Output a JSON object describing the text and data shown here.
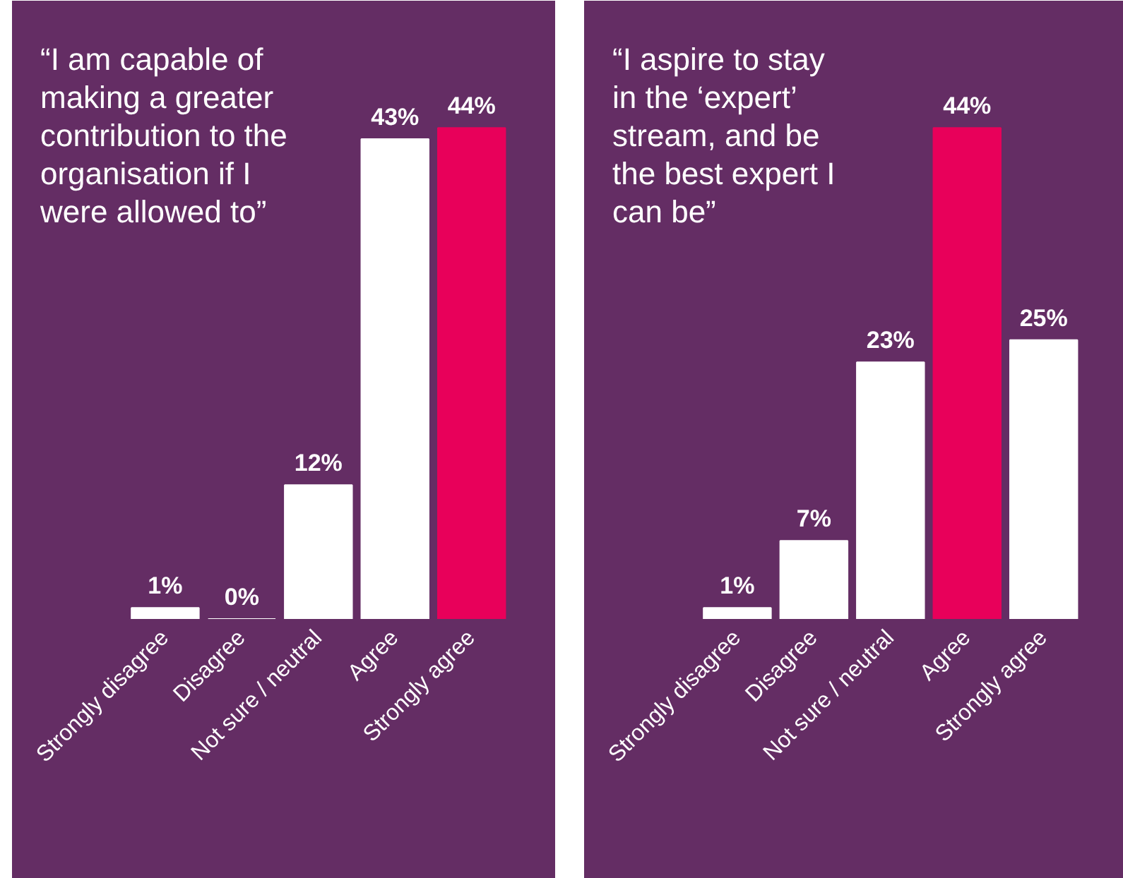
{
  "chart_data": [
    {
      "type": "bar",
      "title": "“I am capable of\nmaking a greater\ncontribution to the\norganisation if I\nwere allowed to”",
      "categories": [
        "Strongly disagree",
        "Disagree",
        "Not sure / neutral",
        "Agree",
        "Strongly agree"
      ],
      "values": [
        1,
        0,
        12,
        43,
        44
      ],
      "value_labels": [
        "1%",
        "0%",
        "12%",
        "43%",
        "44%"
      ],
      "colors": [
        "#ffffff",
        "#ffffff",
        "#ffffff",
        "#ffffff",
        "#e8005a"
      ],
      "data_labels": true
    },
    {
      "type": "bar",
      "title": "“I aspire to stay\nin the ‘expert’\nstream, and be\nthe best expert I\ncan be”",
      "categories": [
        "Strongly disagree",
        "Disagree",
        "Not sure / neutral",
        "Agree",
        "Strongly agree"
      ],
      "values": [
        1,
        7,
        23,
        44,
        25
      ],
      "value_labels": [
        "1%",
        "7%",
        "23%",
        "44%",
        "25%"
      ],
      "colors": [
        "#ffffff",
        "#ffffff",
        "#ffffff",
        "#e8005a",
        "#ffffff"
      ],
      "data_labels": true
    }
  ]
}
